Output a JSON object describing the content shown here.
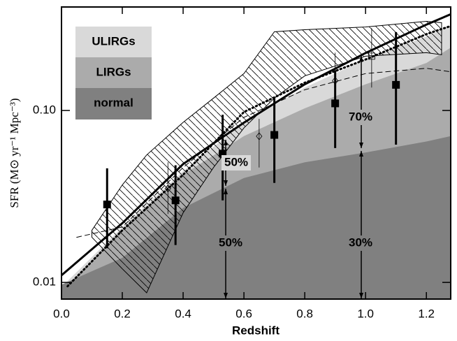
{
  "chart_data": {
    "type": "line",
    "xlabel": "Redshift",
    "ylabel": "SFR (M⊙ yr⁻¹ Mpc⁻³)",
    "xlim": [
      0,
      1.28
    ],
    "ylim": [
      0.008,
      0.4
    ],
    "log_y": true,
    "xticks": [
      {
        "value": 0,
        "label": "0.0"
      },
      0.2,
      0.4,
      0.6,
      0.8,
      {
        "value": 1,
        "label": "1.0"
      },
      1.2
    ],
    "yticks": [
      0.01,
      {
        "value": 0.1,
        "label": "0.10"
      }
    ],
    "area_x": [
      0,
      0.2,
      0.4,
      0.6,
      0.8,
      1.0,
      1.2,
      1.28
    ],
    "areas": [
      {
        "name": "ULIRGs",
        "color": "#d9d9d9",
        "values": [
          0.0094,
          0.021,
          0.0444,
          0.0853,
          0.136,
          0.198,
          0.27,
          0.31
        ]
      },
      {
        "name": "LIRGs",
        "color": "#ababab",
        "values": [
          0.0089,
          0.02,
          0.0423,
          0.071,
          0.103,
          0.142,
          0.189,
          0.232
        ]
      },
      {
        "name": "normal",
        "color": "#808080",
        "values": [
          0.0097,
          0.0139,
          0.0271,
          0.0405,
          0.05,
          0.057,
          0.066,
          0.071
        ]
      }
    ],
    "lines": [
      {
        "style": "solid",
        "x": [
          0,
          0.2,
          0.4,
          0.6,
          0.8,
          1.0,
          1.2,
          1.28
        ],
        "values": [
          0.011,
          0.0221,
          0.0488,
          0.085,
          0.142,
          0.216,
          0.316,
          0.363
        ]
      },
      {
        "style": "dotted",
        "x": [
          0.02,
          0.2,
          0.4,
          0.6,
          0.8,
          1.0,
          1.2,
          1.28
        ],
        "values": [
          0.0095,
          0.0201,
          0.0423,
          0.098,
          0.145,
          0.198,
          0.278,
          0.31
        ]
      },
      {
        "style": "dashed",
        "x": [
          0.05,
          0.2,
          0.4,
          0.6,
          0.8,
          1.0,
          1.2,
          1.28
        ],
        "values": [
          0.0183,
          0.021,
          0.0466,
          0.0912,
          0.132,
          0.164,
          0.176,
          0.168
        ]
      }
    ],
    "hatched_band": {
      "x": [
        0.1,
        0.2,
        0.28,
        0.4,
        0.5,
        0.6,
        0.7,
        0.8,
        1.0,
        1.2,
        1.25
      ],
      "upper": [
        0.0201,
        0.0369,
        0.0551,
        0.0853,
        0.118,
        0.164,
        0.287,
        0.295,
        0.306,
        0.33,
        0.324
      ],
      "lower": [
        0.0183,
        0.012,
        0.0087,
        0.0254,
        0.0466,
        0.0792,
        0.118,
        0.159,
        0.207,
        0.217,
        0.211
      ]
    },
    "markers": [
      {
        "marker": "square-filled",
        "x": [
          0.15,
          0.375,
          0.53,
          0.7,
          0.9,
          1.1
        ],
        "values": [
          0.0284,
          0.03,
          0.0561,
          0.0721,
          0.11,
          0.141
        ],
        "lower": [
          0.0158,
          0.0165,
          0.03,
          0.0379,
          0.0605,
          0.0633
        ],
        "upper": [
          0.0461,
          0.048,
          0.0944,
          0.119,
          0.171,
          0.286
        ]
      },
      {
        "marker": "diamond-open",
        "x": [
          0.35,
          0.65,
          0.9
        ],
        "values": [
          0.0352,
          0.0708,
          0.149
        ],
        "lower": [
          0.025,
          0.0466,
          0.113
        ],
        "upper": [
          0.05,
          0.0894,
          0.217
        ]
      },
      {
        "marker": "square-open",
        "x": [
          1.02
        ],
        "values": [
          0.207
        ],
        "lower": [
          0.136
        ],
        "upper": [
          0.301
        ]
      }
    ],
    "annotations": [
      "50%",
      "50%",
      "70%",
      "30%"
    ]
  }
}
